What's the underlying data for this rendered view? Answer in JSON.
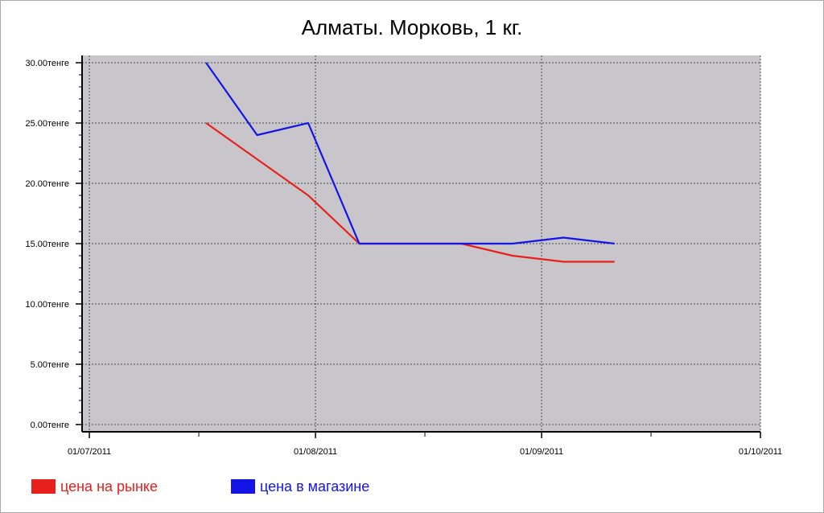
{
  "chart_data": {
    "type": "line",
    "title": "Алматы. Морковь, 1 кг.",
    "xlabel": "",
    "ylabel": "",
    "x_tick_labels": [
      "01/07/2011",
      "01/08/2011",
      "01/09/2011",
      "01/10/2011"
    ],
    "y_ticks": [
      {
        "value": 0,
        "label": "0.00тенге"
      },
      {
        "value": 5,
        "label": "5.00тенге"
      },
      {
        "value": 10,
        "label": "10.00тенге"
      },
      {
        "value": 15,
        "label": "15.00тенге"
      },
      {
        "value": 20,
        "label": "20.00тенге"
      },
      {
        "value": 25,
        "label": "25.00тенге"
      },
      {
        "value": 30,
        "label": "30.00тенге"
      }
    ],
    "xlim": [
      "2011-06-30",
      "2011-10-01"
    ],
    "ylim": [
      -0.6,
      30.6
    ],
    "grid": true,
    "legend_position": "bottom-left",
    "plot_background": "#c8c6ca",
    "series": [
      {
        "name": "цена на рынке",
        "color": "#e8201c",
        "points": [
          {
            "x": "2011-07-17",
            "y": 25.0
          },
          {
            "x": "2011-07-24",
            "y": 22.0
          },
          {
            "x": "2011-07-31",
            "y": 19.0
          },
          {
            "x": "2011-08-07",
            "y": 15.0
          },
          {
            "x": "2011-08-14",
            "y": 15.0
          },
          {
            "x": "2011-08-21",
            "y": 15.0
          },
          {
            "x": "2011-08-28",
            "y": 14.0
          },
          {
            "x": "2011-09-04",
            "y": 13.5
          },
          {
            "x": "2011-09-11",
            "y": 13.5
          }
        ]
      },
      {
        "name": "цена в магазине",
        "color": "#1414e6",
        "points": [
          {
            "x": "2011-07-17",
            "y": 30.0
          },
          {
            "x": "2011-07-24",
            "y": 24.0
          },
          {
            "x": "2011-07-31",
            "y": 25.0
          },
          {
            "x": "2011-08-07",
            "y": 15.0
          },
          {
            "x": "2011-08-14",
            "y": 15.0
          },
          {
            "x": "2011-08-21",
            "y": 15.0
          },
          {
            "x": "2011-08-28",
            "y": 15.0
          },
          {
            "x": "2011-09-04",
            "y": 15.5
          },
          {
            "x": "2011-09-11",
            "y": 15.0
          }
        ]
      }
    ]
  }
}
